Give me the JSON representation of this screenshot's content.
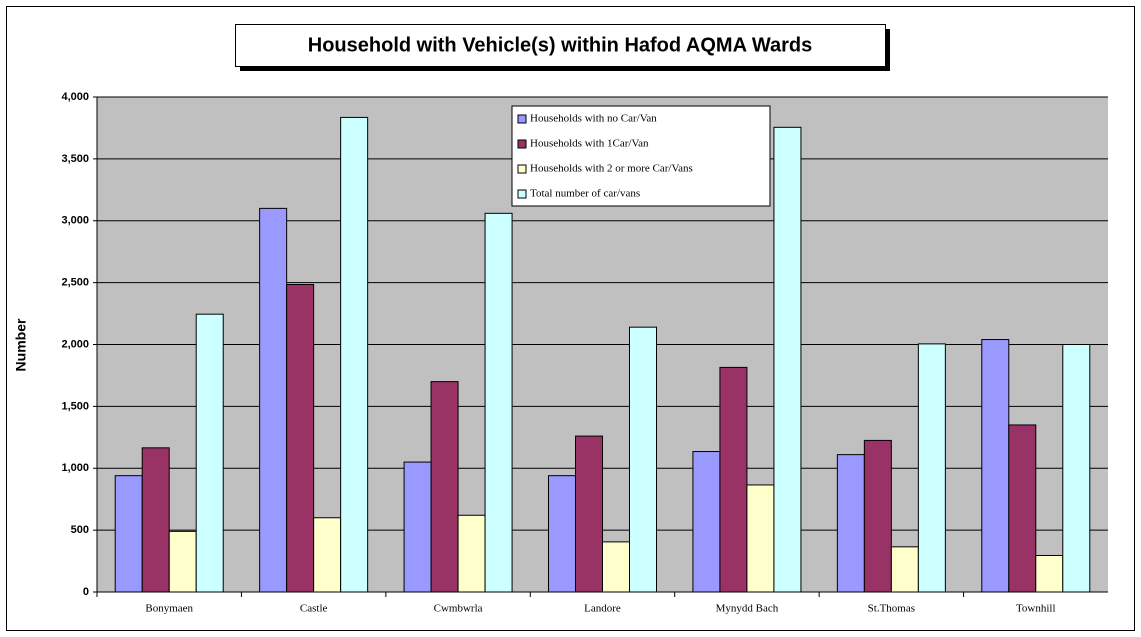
{
  "chart_data": {
    "type": "bar",
    "title": "Household with Vehicle(s) within Hafod AQMA Wards",
    "y_label": "Number",
    "categories": [
      "Bonymaen",
      "Castle",
      "Cwmbwrla",
      "Landore",
      "Mynydd Bach",
      "St.Thomas",
      "Townhill"
    ],
    "series": [
      {
        "name": "Households with no Car/Van",
        "color": "#9999ff",
        "values": [
          940,
          3100,
          1050,
          940,
          1135,
          1110,
          2040
        ]
      },
      {
        "name": "Households with 1Car/Van",
        "color": "#993366",
        "values": [
          1165,
          2485,
          1700,
          1260,
          1815,
          1225,
          1350
        ]
      },
      {
        "name": "Households with 2 or more Car/Vans",
        "color": "#ffffcc",
        "values": [
          490,
          600,
          620,
          405,
          865,
          365,
          295
        ]
      },
      {
        "name": "Total number of car/vans",
        "color": "#ccffff",
        "values": [
          2245,
          3835,
          3060,
          2140,
          3755,
          2005,
          2000
        ]
      }
    ],
    "ylim": [
      0,
      4000
    ],
    "yticks": [
      0,
      {
        "value": 500,
        "label": "500"
      },
      {
        "value": 1000,
        "label": "1,000"
      },
      {
        "value": 1500,
        "label": "1,500"
      },
      {
        "value": 2000,
        "label": "2,000"
      },
      {
        "value": 2500,
        "label": "2,500"
      },
      {
        "value": 3000,
        "label": "3,000"
      },
      {
        "value": 3500,
        "label": "3,500"
      },
      {
        "value": 4000,
        "label": "4,000"
      }
    ],
    "grid": true,
    "legend": "top-center",
    "plot_background": "#c0c0c0"
  }
}
